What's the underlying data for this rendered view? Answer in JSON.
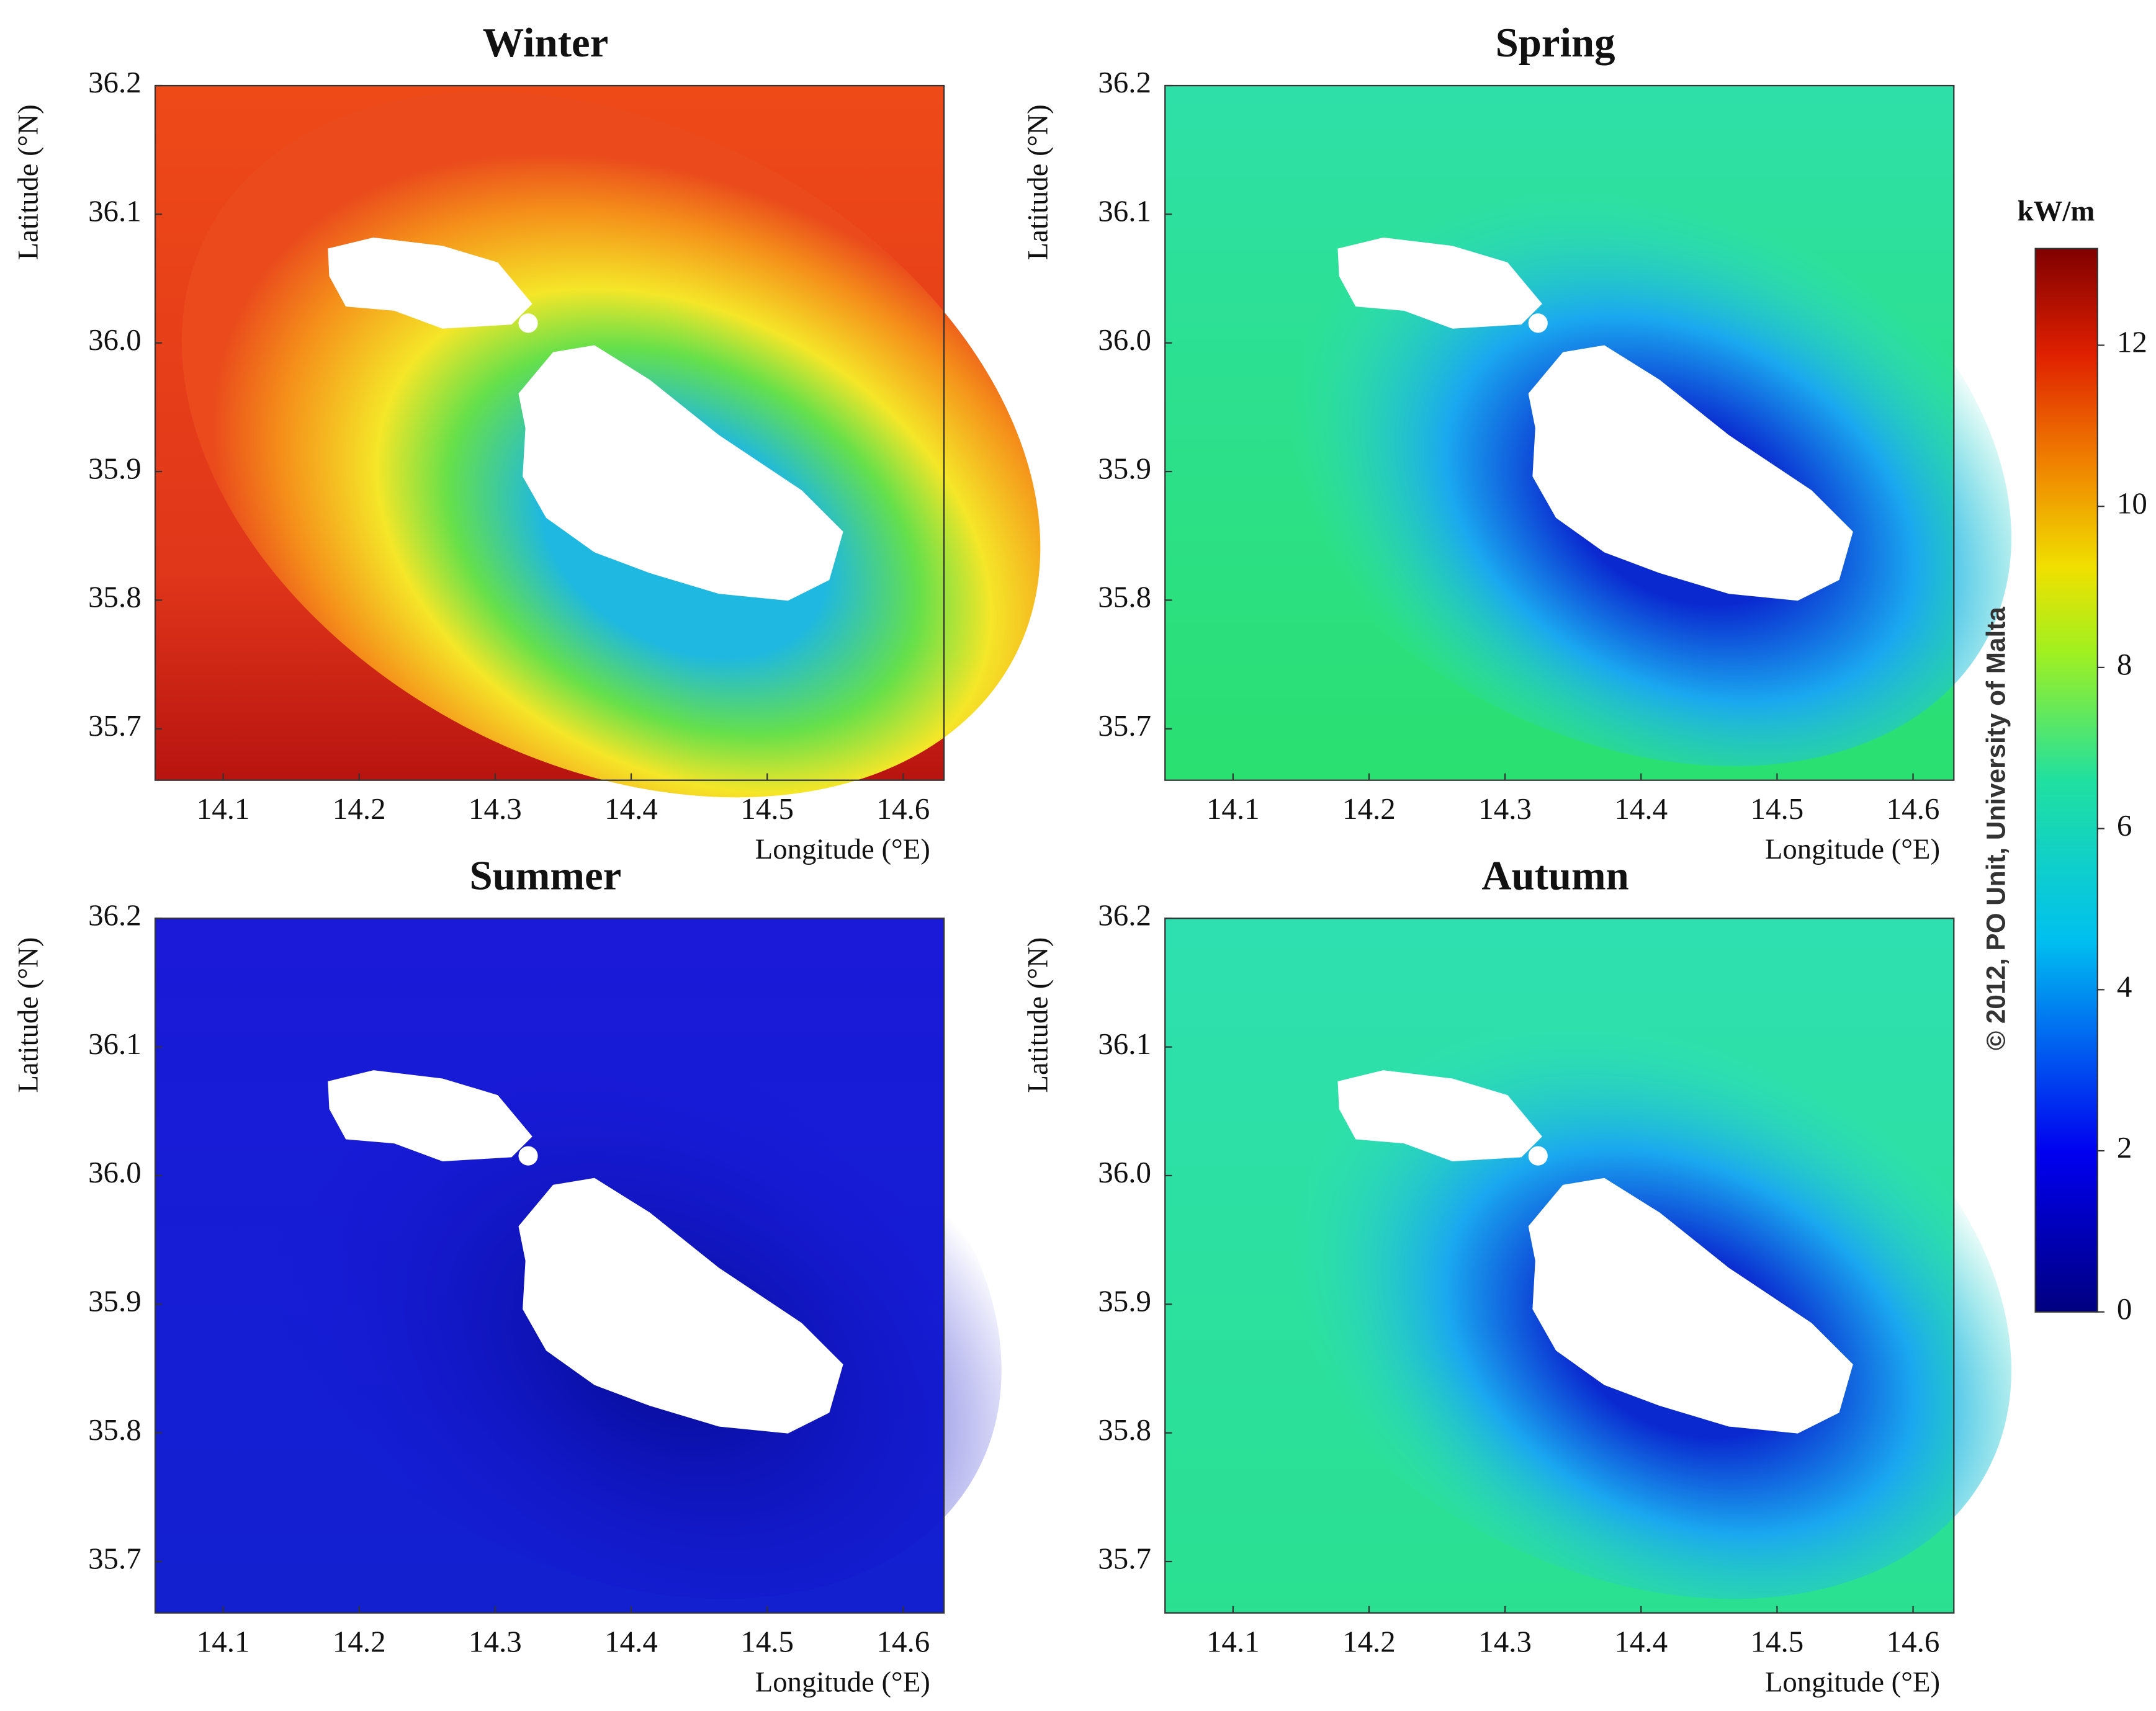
{
  "panels": [
    {
      "title": "Winter",
      "xlabel": "Longitude (°E)",
      "ylabel": "Latitude (°N)",
      "xlim": [
        14.05,
        14.63
      ],
      "ylim": [
        35.66,
        36.2
      ],
      "xticks": [
        14.1,
        14.2,
        14.3,
        14.4,
        14.5,
        14.6
      ],
      "yticks": [
        35.7,
        35.8,
        35.9,
        {
          "value": 36.0,
          "label": "36.0"
        },
        36.1,
        36.2
      ]
    },
    {
      "title": "Spring",
      "xlabel": "Longitude (°E)",
      "ylabel": "Latitude (°N)",
      "xlim": [
        14.05,
        14.63
      ],
      "ylim": [
        35.66,
        36.2
      ],
      "xticks": [
        14.1,
        14.2,
        14.3,
        14.4,
        14.5,
        14.6
      ],
      "yticks": [
        35.7,
        35.8,
        35.9,
        {
          "value": 36.0,
          "label": "36.0"
        },
        36.1,
        36.2
      ]
    },
    {
      "title": "Summer",
      "xlabel": "Longitude (°E)",
      "ylabel": "Latitude (°N)",
      "xlim": [
        14.05,
        14.63
      ],
      "ylim": [
        35.66,
        36.2
      ],
      "xticks": [
        14.1,
        14.2,
        14.3,
        14.4,
        14.5,
        14.6
      ],
      "yticks": [
        35.7,
        35.8,
        35.9,
        {
          "value": 36.0,
          "label": "36.0"
        },
        36.1,
        36.2
      ]
    },
    {
      "title": "Autumn",
      "xlabel": "Longitude (°E)",
      "ylabel": "Latitude (°N)",
      "xlim": [
        14.05,
        14.63
      ],
      "ylim": [
        35.66,
        36.2
      ],
      "xticks": [
        14.1,
        14.2,
        14.3,
        14.4,
        14.5,
        14.6
      ],
      "yticks": [
        35.7,
        35.8,
        35.9,
        {
          "value": 36.0,
          "label": "36.0"
        },
        36.1,
        36.2
      ]
    }
  ],
  "colorbar": {
    "label": "kW/m",
    "lim": [
      0,
      13.2
    ],
    "ticks": [
      0,
      2,
      4,
      6,
      8,
      10,
      12
    ]
  },
  "copyright": "© 2012, PO Unit, University of Malta"
}
